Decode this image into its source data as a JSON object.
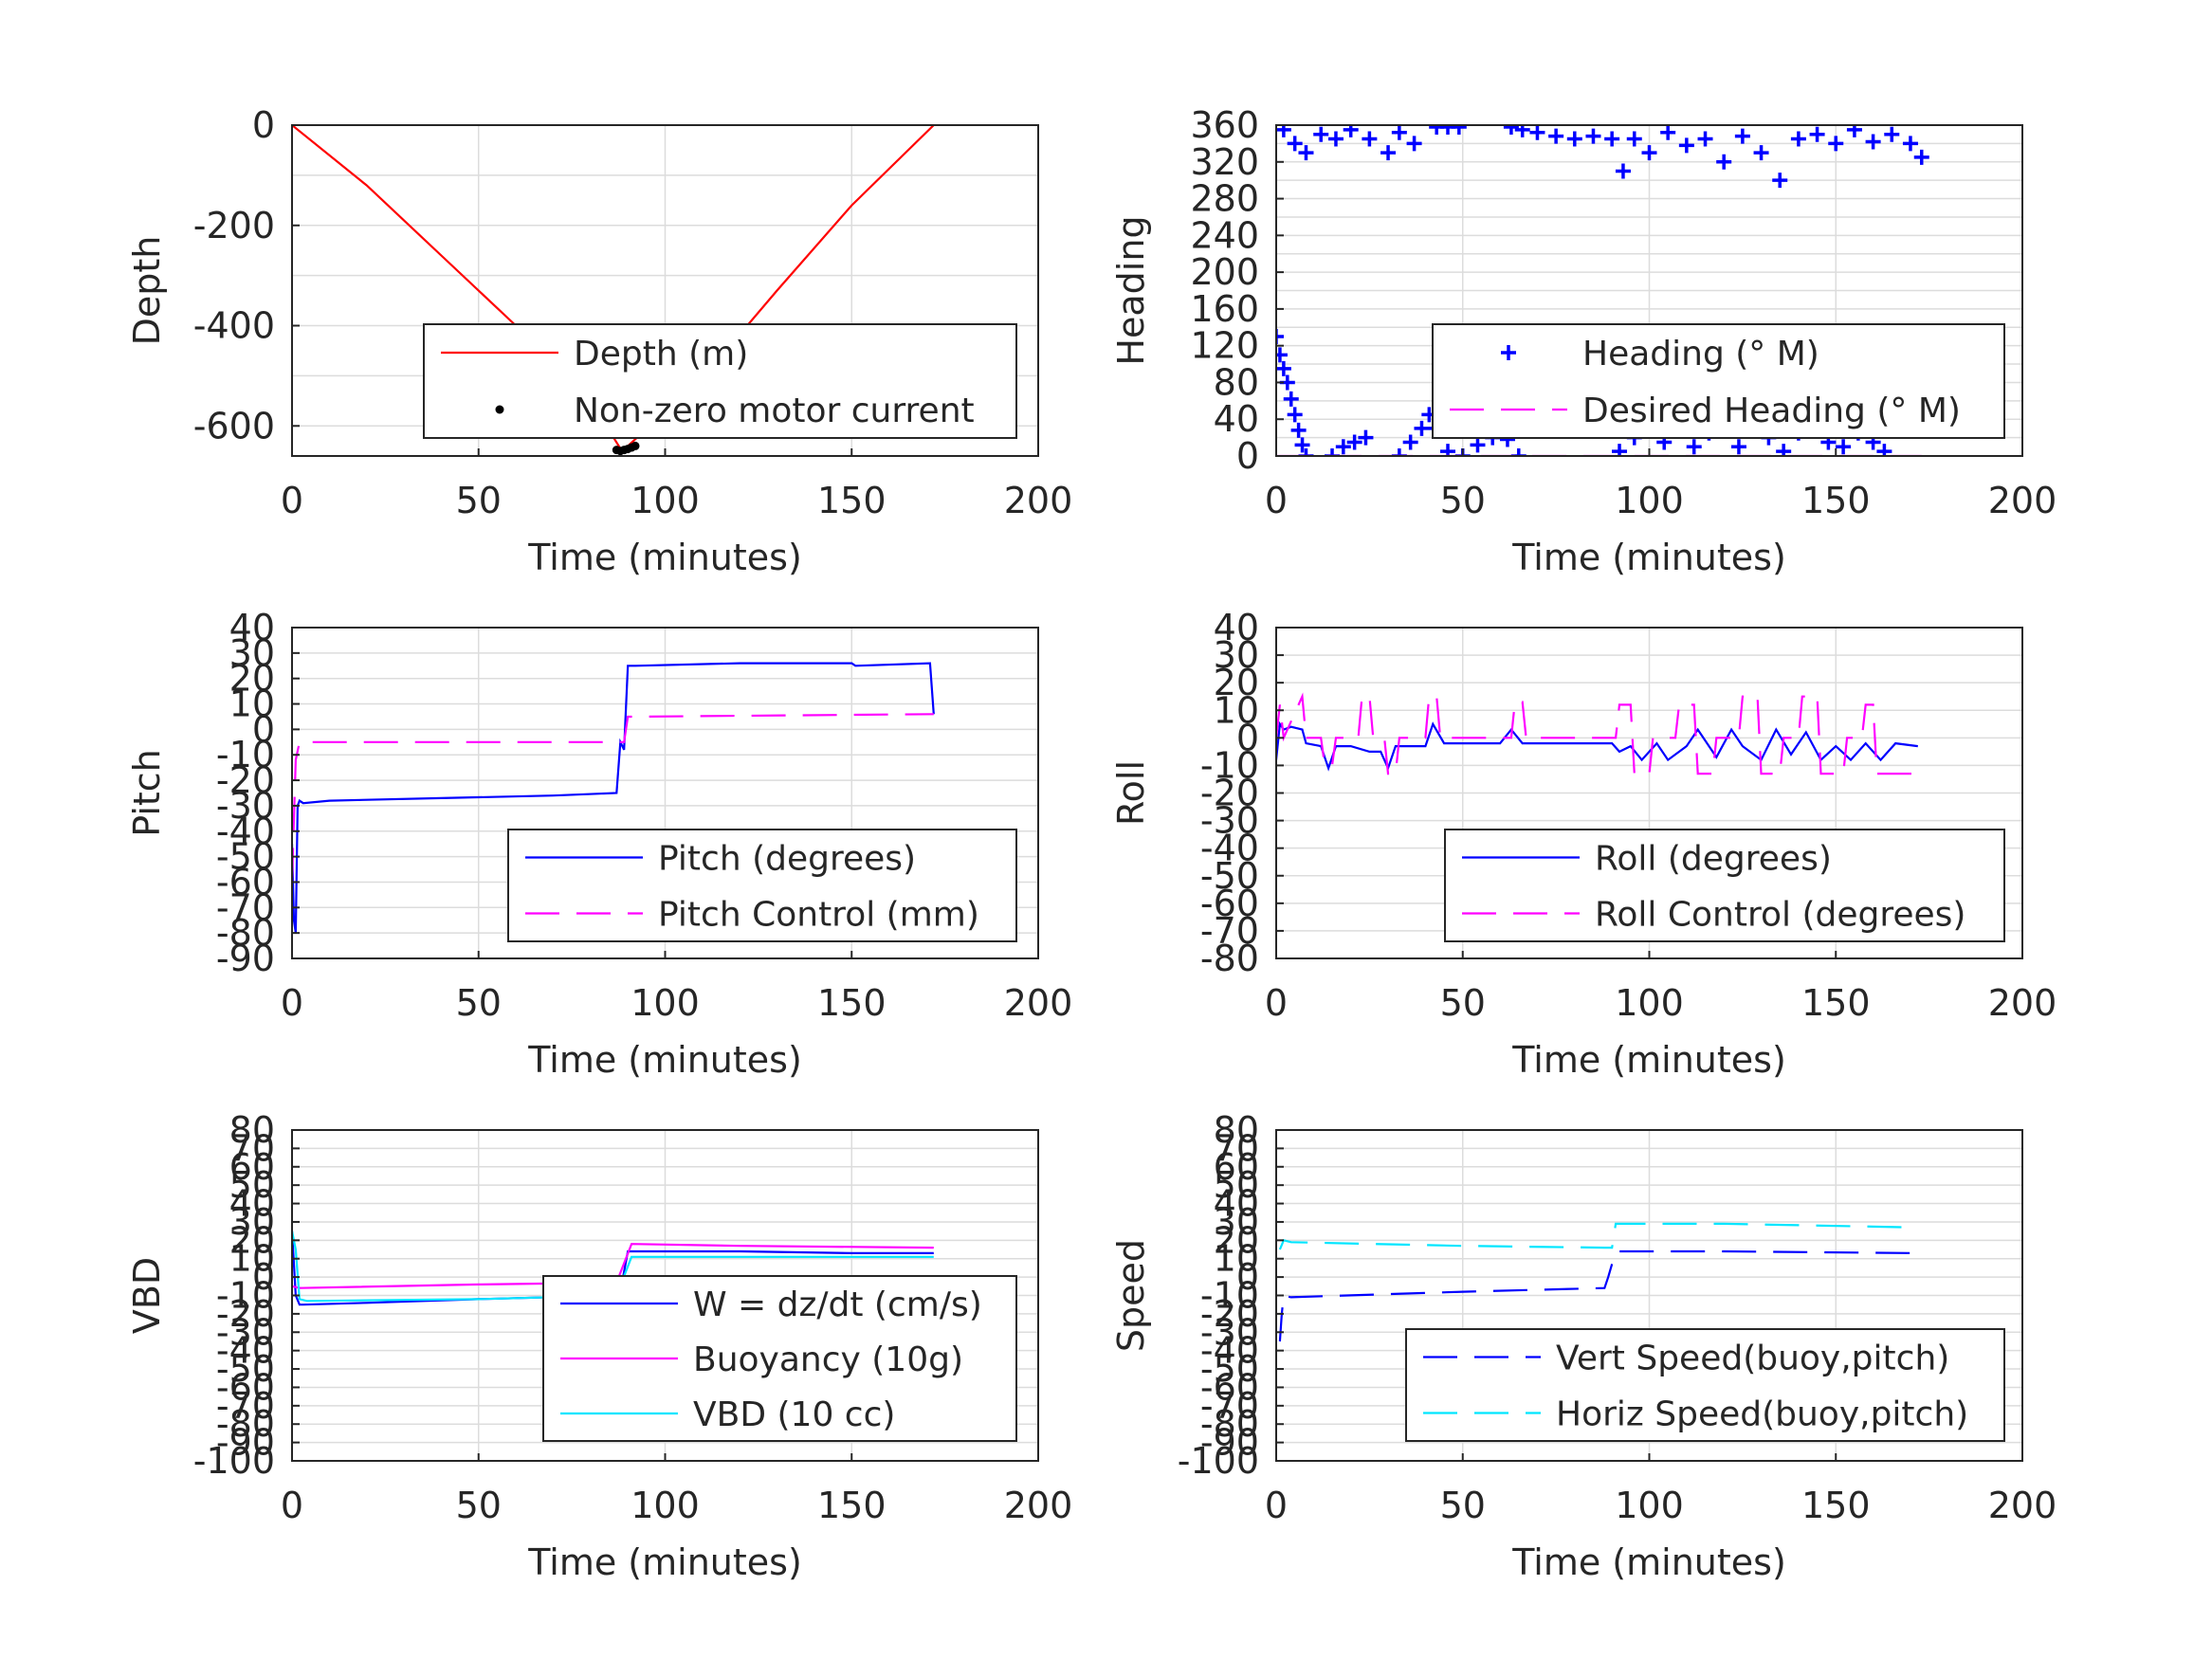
{
  "colors": {
    "grid": "#dcdcdc",
    "axis": "#262626",
    "red": "#ff0000",
    "blue": "#0000ff",
    "magenta": "#ff00ff",
    "cyan": "#00e6ff",
    "black": "#000000"
  },
  "chart_data": [
    {
      "id": "depth",
      "type": "line",
      "xlabel": "Time (minutes)",
      "ylabel": "Depth",
      "xlim": [
        0,
        200
      ],
      "ylim": [
        -660,
        0
      ],
      "xticks": [
        0,
        50,
        100,
        150,
        200
      ],
      "yticks": [
        0,
        -200,
        -400,
        -600
      ],
      "ygrid": [
        0,
        -100,
        -200,
        -300,
        -400,
        -500,
        -600
      ],
      "legend_position": "bottom-right",
      "series": [
        {
          "name": "Depth (m)",
          "style": "line",
          "color": "#ff0000",
          "x": [
            0,
            20,
            40,
            60,
            80,
            88,
            90,
            110,
            130,
            150,
            172
          ],
          "y": [
            0,
            -120,
            -260,
            -400,
            -550,
            -645,
            -640,
            -505,
            -330,
            -160,
            0
          ]
        },
        {
          "name": "Non-zero motor current",
          "style": "dots",
          "color": "#000000",
          "x": [
            87,
            88,
            89,
            90,
            91,
            92
          ],
          "y": [
            -648,
            -650,
            -648,
            -646,
            -643,
            -640
          ]
        }
      ]
    },
    {
      "id": "heading",
      "type": "scatter",
      "xlabel": "Time (minutes)",
      "ylabel": "Heading",
      "xlim": [
        0,
        200
      ],
      "ylim": [
        0,
        360
      ],
      "xticks": [
        0,
        50,
        100,
        150,
        200
      ],
      "yticks": [
        0,
        40,
        80,
        120,
        160,
        200,
        240,
        280,
        320,
        360
      ],
      "ygrid": [
        0,
        20,
        40,
        60,
        80,
        100,
        120,
        140,
        160,
        180,
        200,
        220,
        240,
        260,
        280,
        300,
        320,
        340,
        360
      ],
      "legend_position": "bottom-right",
      "series": [
        {
          "name": "Heading (° M)",
          "style": "plus",
          "color": "#0000ff",
          "x": [
            0,
            1,
            2,
            3,
            4,
            5,
            6,
            7,
            8,
            15,
            18,
            21,
            24,
            33,
            36,
            39,
            41,
            43,
            46,
            50,
            54,
            58,
            62,
            65,
            2,
            5,
            8,
            12,
            16,
            20,
            25,
            30,
            33,
            37,
            43,
            46,
            49,
            63,
            66,
            70,
            75,
            80,
            85,
            90,
            93,
            96,
            100,
            105,
            110,
            115,
            120,
            125,
            130,
            135,
            140,
            145,
            150,
            155,
            160,
            165,
            170,
            173,
            92,
            96,
            100,
            104,
            108,
            112,
            116,
            120,
            124,
            128,
            132,
            136,
            140,
            144,
            148,
            152,
            156,
            160,
            163
          ],
          "y": [
            130,
            110,
            95,
            80,
            62,
            45,
            28,
            12,
            0,
            0,
            10,
            15,
            20,
            0,
            15,
            30,
            45,
            30,
            5,
            0,
            12,
            20,
            18,
            0,
            355,
            340,
            330,
            350,
            345,
            355,
            345,
            330,
            352,
            340,
            358,
            358,
            358,
            358,
            355,
            352,
            348,
            345,
            348,
            345,
            310,
            345,
            330,
            352,
            338,
            345,
            320,
            348,
            330,
            300,
            345,
            350,
            340,
            355,
            342,
            350,
            340,
            325,
            5,
            20,
            30,
            15,
            35,
            10,
            25,
            35,
            10,
            30,
            20,
            5,
            25,
            40,
            15,
            10,
            25,
            15,
            5
          ]
        },
        {
          "name": "Desired Heading (° M)",
          "style": "dash",
          "color": "#ff00ff",
          "x": [
            0,
            173
          ],
          "y": [
            0,
            0
          ]
        }
      ]
    },
    {
      "id": "pitch",
      "type": "line",
      "xlabel": "Time (minutes)",
      "ylabel": "Pitch",
      "xlim": [
        0,
        200
      ],
      "ylim": [
        -90,
        40
      ],
      "xticks": [
        0,
        50,
        100,
        150,
        200
      ],
      "yticks": [
        40,
        30,
        20,
        10,
        0,
        -10,
        -20,
        -30,
        -40,
        -50,
        -60,
        -70,
        -80,
        -90
      ],
      "ygrid": [
        40,
        30,
        20,
        10,
        0,
        -10,
        -20,
        -30,
        -40,
        -50,
        -60,
        -70,
        -80,
        -90
      ],
      "legend_position": "bottom-right",
      "series": [
        {
          "name": "Pitch (degrees)",
          "style": "line",
          "color": "#0000ff",
          "x": [
            0,
            0.5,
            1,
            1.5,
            2,
            3,
            10,
            40,
            70,
            87,
            88,
            89,
            90,
            92,
            120,
            150,
            151,
            171,
            172
          ],
          "y": [
            -45,
            -75,
            -80,
            -30,
            -28,
            -29,
            -28,
            -27,
            -26,
            -25,
            -5,
            -8,
            25,
            25,
            26,
            26,
            25,
            26,
            6
          ]
        },
        {
          "name": "Pitch Control (mm)",
          "style": "dash",
          "color": "#ff00ff",
          "x": [
            0,
            1,
            2,
            88,
            89,
            90,
            91,
            172
          ],
          "y": [
            -60,
            -12,
            -5,
            -5,
            -5,
            5,
            5,
            6
          ]
        }
      ]
    },
    {
      "id": "roll",
      "type": "line",
      "xlabel": "Time (minutes)",
      "ylabel": "Roll",
      "xlim": [
        0,
        200
      ],
      "ylim": [
        -80,
        40
      ],
      "xticks": [
        0,
        50,
        100,
        150,
        200
      ],
      "yticks": [
        40,
        30,
        20,
        10,
        0,
        -10,
        -20,
        -30,
        -40,
        -50,
        -60,
        -70,
        -80
      ],
      "ygrid": [
        40,
        30,
        20,
        10,
        0,
        -10,
        -20,
        -30,
        -40,
        -50,
        -60,
        -70,
        -80
      ],
      "legend_position": "bottom-right",
      "series": [
        {
          "name": "Roll (degrees)",
          "style": "line",
          "color": "#0000ff",
          "x": [
            0,
            1,
            2,
            4,
            7,
            8,
            12,
            14,
            16,
            20,
            25,
            28,
            30,
            32,
            40,
            42,
            45,
            60,
            63,
            66,
            90,
            92,
            95,
            98,
            102,
            105,
            110,
            113,
            118,
            122,
            125,
            130,
            134,
            138,
            142,
            146,
            150,
            154,
            158,
            162,
            166,
            172
          ],
          "y": [
            -8,
            5,
            3,
            4,
            3,
            -2,
            -3,
            -11,
            -3,
            -3,
            -5,
            -5,
            -11,
            -3,
            -3,
            5,
            -2,
            -2,
            3,
            -2,
            -2,
            -5,
            -3,
            -8,
            -2,
            -8,
            -3,
            3,
            -7,
            3,
            -3,
            -8,
            3,
            -6,
            2,
            -8,
            -3,
            -8,
            -2,
            -8,
            -2,
            -3
          ]
        },
        {
          "name": "Roll Control (degrees)",
          "style": "dash",
          "color": "#ff00ff",
          "x": [
            0,
            1,
            2,
            7,
            8,
            12,
            13,
            15,
            16,
            22,
            23,
            25,
            26,
            29,
            30,
            32,
            33,
            40,
            41,
            43,
            44,
            63,
            64,
            66,
            67,
            91,
            92,
            95,
            96,
            100,
            101,
            107,
            108,
            112,
            113,
            117,
            118,
            124,
            125,
            129,
            130,
            135,
            136,
            140,
            141,
            145,
            146,
            152,
            153,
            157,
            158,
            160,
            161,
            172
          ],
          "y": [
            0,
            12,
            0,
            15,
            0,
            0,
            -10,
            -10,
            0,
            0,
            15,
            15,
            0,
            0,
            -13,
            -13,
            0,
            0,
            15,
            15,
            0,
            0,
            13,
            13,
            0,
            0,
            12,
            12,
            -13,
            -13,
            0,
            0,
            12,
            12,
            -13,
            -13,
            0,
            0,
            15,
            15,
            -13,
            -13,
            0,
            0,
            15,
            15,
            -13,
            -13,
            0,
            0,
            12,
            12,
            -13,
            -13
          ]
        }
      ]
    },
    {
      "id": "vbd",
      "type": "line",
      "xlabel": "Time (minutes)",
      "ylabel": "VBD",
      "xlim": [
        0,
        200
      ],
      "ylim": [
        -100,
        80
      ],
      "xticks": [
        0,
        50,
        100,
        150,
        200
      ],
      "yticks": [
        80,
        70,
        60,
        50,
        40,
        30,
        20,
        10,
        0,
        -10,
        -20,
        -30,
        -40,
        -50,
        -60,
        -70,
        -80,
        -90,
        -100
      ],
      "ygrid": [
        80,
        70,
        60,
        50,
        40,
        30,
        20,
        10,
        0,
        -10,
        -20,
        -30,
        -40,
        -50,
        -60,
        -70,
        -80,
        -90,
        -100
      ],
      "legend_position": "bottom-right",
      "series": [
        {
          "name": "W = dz/dt (cm/s)",
          "style": "line",
          "color": "#0000ff",
          "x": [
            0,
            1,
            2,
            3,
            20,
            50,
            87,
            88,
            90,
            92,
            120,
            150,
            172
          ],
          "y": [
            25,
            -10,
            -15,
            -15,
            -14,
            -12,
            -10,
            -8,
            14,
            14,
            14,
            13,
            13
          ]
        },
        {
          "name": "Buoyancy (10g)",
          "style": "line",
          "color": "#ff00ff",
          "x": [
            0,
            2,
            50,
            87,
            91,
            120,
            172
          ],
          "y": [
            -5,
            -6,
            -4,
            -3,
            18,
            17,
            16
          ]
        },
        {
          "name": "VBD (10 cc)",
          "style": "line",
          "color": "#00e6ff",
          "x": [
            0,
            1,
            2,
            4,
            50,
            87,
            91,
            120,
            172
          ],
          "y": [
            25,
            15,
            -12,
            -13,
            -12,
            -10,
            11,
            11,
            11
          ]
        }
      ]
    },
    {
      "id": "speed",
      "type": "line",
      "xlabel": "Time (minutes)",
      "ylabel": "Speed",
      "xlim": [
        0,
        200
      ],
      "ylim": [
        -100,
        80
      ],
      "xticks": [
        0,
        50,
        100,
        150,
        200
      ],
      "yticks": [
        80,
        70,
        60,
        50,
        40,
        30,
        20,
        10,
        0,
        -10,
        -20,
        -30,
        -40,
        -50,
        -60,
        -70,
        -80,
        -90,
        -100
      ],
      "ygrid": [
        80,
        70,
        60,
        50,
        40,
        30,
        20,
        10,
        0,
        -10,
        -20,
        -30,
        -40,
        -50,
        -60,
        -70,
        -80,
        -90,
        -100
      ],
      "legend_position": "bottom-right",
      "series": [
        {
          "name": "Vert Speed(buoy,pitch)",
          "style": "dash",
          "color": "#0000ff",
          "x": [
            1,
            1.5,
            2,
            4,
            50,
            88,
            89,
            91,
            120,
            172
          ],
          "y": [
            -35,
            -20,
            -10,
            -11,
            -8,
            -6,
            0,
            14,
            14,
            13
          ]
        },
        {
          "name": "Horiz Speed(buoy,pitch)",
          "style": "dash",
          "color": "#00e6ff",
          "x": [
            1,
            2,
            4,
            50,
            88,
            90,
            91,
            120,
            172
          ],
          "y": [
            15,
            20,
            19,
            17,
            16,
            16,
            29,
            29,
            27
          ]
        }
      ]
    }
  ]
}
